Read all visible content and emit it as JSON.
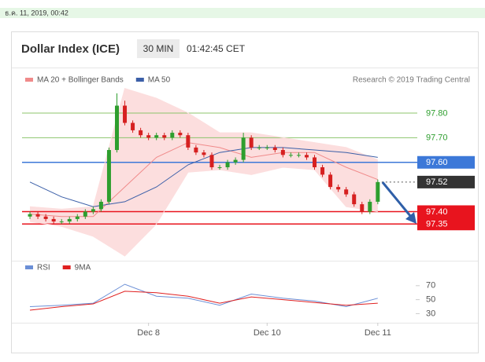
{
  "header": {
    "timestamp": "ธ.ค. 11, 2019, 00:42",
    "title": "Dollar Index (ICE)",
    "interval": "30 MIN",
    "time": "01:42:45 CET"
  },
  "chart_data": [
    {
      "type": "candlestick",
      "credit": "Research © 2019 Trading Central",
      "xlim": [
        -1,
        48
      ],
      "ylim": [
        97.22,
        97.94
      ],
      "up_color": "#2e9e2e",
      "down_color": "#d62020",
      "x": [
        0,
        1,
        2,
        3,
        4,
        5,
        6,
        7,
        8,
        9,
        10,
        11,
        12,
        13,
        14,
        15,
        16,
        17,
        18,
        19,
        20,
        21,
        22,
        23,
        24,
        25,
        26,
        27,
        28,
        29,
        30,
        31,
        32,
        33,
        34,
        35,
        36,
        37,
        38,
        39,
        40,
        41,
        42,
        43,
        44
      ],
      "open": [
        97.38,
        97.39,
        97.38,
        97.37,
        97.36,
        97.36,
        97.37,
        97.38,
        97.4,
        97.41,
        97.44,
        97.65,
        97.83,
        97.76,
        97.73,
        97.71,
        97.7,
        97.71,
        97.7,
        97.72,
        97.71,
        97.66,
        97.64,
        97.63,
        97.58,
        97.58,
        97.6,
        97.61,
        97.7,
        97.66,
        97.66,
        97.66,
        97.65,
        97.63,
        97.63,
        97.63,
        97.62,
        97.58,
        97.55,
        97.5,
        97.49,
        97.47,
        97.43,
        97.4,
        97.44
      ],
      "high": [
        97.4,
        97.4,
        97.39,
        97.38,
        97.37,
        97.38,
        97.39,
        97.41,
        97.42,
        97.45,
        97.66,
        97.88,
        97.85,
        97.77,
        97.74,
        97.72,
        97.72,
        97.72,
        97.73,
        97.73,
        97.72,
        97.67,
        97.65,
        97.64,
        97.59,
        97.61,
        97.62,
        97.72,
        97.71,
        97.67,
        97.67,
        97.67,
        97.66,
        97.64,
        97.64,
        97.64,
        97.63,
        97.59,
        97.56,
        97.51,
        97.5,
        97.48,
        97.44,
        97.45,
        97.53
      ],
      "low": [
        97.37,
        97.37,
        97.36,
        97.35,
        97.35,
        97.35,
        97.36,
        97.37,
        97.39,
        97.4,
        97.43,
        97.64,
        97.75,
        97.72,
        97.7,
        97.69,
        97.69,
        97.69,
        97.69,
        97.7,
        97.65,
        97.63,
        97.62,
        97.57,
        97.57,
        97.57,
        97.59,
        97.6,
        97.65,
        97.65,
        97.65,
        97.64,
        97.62,
        97.62,
        97.62,
        97.61,
        97.57,
        97.54,
        97.49,
        97.48,
        97.46,
        97.42,
        97.39,
        97.39,
        97.43
      ],
      "close": [
        97.39,
        97.38,
        97.37,
        97.36,
        97.36,
        97.37,
        97.38,
        97.4,
        97.41,
        97.44,
        97.65,
        97.83,
        97.76,
        97.73,
        97.71,
        97.7,
        97.71,
        97.7,
        97.72,
        97.71,
        97.66,
        97.64,
        97.63,
        97.58,
        97.58,
        97.6,
        97.61,
        97.7,
        97.66,
        97.66,
        97.66,
        97.65,
        97.63,
        97.63,
        97.63,
        97.62,
        97.58,
        97.55,
        97.5,
        97.49,
        97.47,
        97.43,
        97.4,
        97.44,
        97.52
      ],
      "series": [
        {
          "name": "MA 20 + Bollinger Bands",
          "color": "#f08a8a",
          "band_color": "#fcdede",
          "x": [
            0,
            4,
            8,
            12,
            16,
            20,
            24,
            28,
            32,
            36,
            40,
            44
          ],
          "values": [
            97.39,
            97.38,
            97.38,
            97.5,
            97.62,
            97.68,
            97.66,
            97.62,
            97.64,
            97.64,
            97.58,
            97.53
          ],
          "upper": [
            97.42,
            97.41,
            97.42,
            97.9,
            97.86,
            97.8,
            97.72,
            97.72,
            97.7,
            97.68,
            97.66,
            97.61
          ],
          "lower": [
            97.36,
            97.34,
            97.3,
            97.22,
            97.35,
            97.56,
            97.57,
            97.55,
            97.58,
            97.57,
            97.42,
            97.4
          ]
        },
        {
          "name": "MA 50",
          "color": "#3b5fa8",
          "x": [
            0,
            4,
            8,
            12,
            16,
            20,
            24,
            28,
            32,
            36,
            40,
            44
          ],
          "values": [
            97.52,
            97.46,
            97.42,
            97.44,
            97.5,
            97.59,
            97.64,
            97.66,
            97.66,
            97.65,
            97.64,
            97.62
          ]
        }
      ],
      "levels": [
        {
          "value": 97.8,
          "label": "97.80",
          "color": "#8cc46b",
          "label_fill": null,
          "dash": false
        },
        {
          "value": 97.7,
          "label": "97.70",
          "color": "#8cc46b",
          "label_fill": null,
          "dash": false
        },
        {
          "value": 97.6,
          "label": "97.60",
          "color": "#3c78d8",
          "label_fill": "#3c78d8",
          "dash": false
        },
        {
          "value": 97.52,
          "label": "97.52",
          "color": "#555555",
          "label_fill": "#333333",
          "dash": true
        },
        {
          "value": 97.4,
          "label": "97.40",
          "color": "#e8141e",
          "label_fill": "#e8141e",
          "dash": false
        },
        {
          "value": 97.35,
          "label": "97.35",
          "color": "#e8141e",
          "label_fill": "#e8141e",
          "dash": false
        }
      ]
    },
    {
      "type": "line",
      "xlim": [
        -1,
        48
      ],
      "ylim": [
        17,
        90
      ],
      "yticks": [
        70,
        50,
        30
      ],
      "xticks": [
        {
          "value": 15,
          "label": "Dec 8"
        },
        {
          "value": 30,
          "label": "Dec 10"
        },
        {
          "value": 44,
          "label": "Dec 11"
        }
      ],
      "series": [
        {
          "name": "RSI",
          "color": "#6b8fd6",
          "x": [
            0,
            4,
            8,
            12,
            16,
            20,
            24,
            28,
            32,
            36,
            40,
            44
          ],
          "values": [
            40,
            42,
            45,
            72,
            55,
            52,
            42,
            58,
            52,
            48,
            40,
            52
          ]
        },
        {
          "name": "9MA",
          "color": "#e02020",
          "x": [
            0,
            4,
            8,
            12,
            16,
            20,
            24,
            28,
            32,
            36,
            40,
            44
          ],
          "values": [
            35,
            40,
            44,
            62,
            60,
            55,
            45,
            54,
            50,
            46,
            42,
            45
          ]
        }
      ]
    }
  ]
}
